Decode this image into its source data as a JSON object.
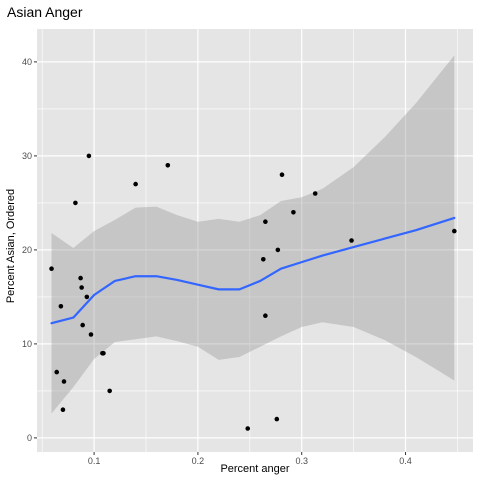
{
  "chart_data": {
    "type": "scatter",
    "title": "Asian Anger",
    "xlabel": "Percent anger",
    "ylabel": "Percent Asian, Ordered",
    "xlim": [
      0.045,
      0.465
    ],
    "ylim": [
      -1.5,
      43.5
    ],
    "x_ticks": [
      0.1,
      0.2,
      0.3,
      0.4
    ],
    "x_tick_labels": [
      "0.1",
      "0.2",
      "0.3",
      "0.4"
    ],
    "y_ticks": [
      0,
      10,
      20,
      30,
      40
    ],
    "y_tick_labels": [
      "0",
      "10",
      "20",
      "30",
      "40"
    ],
    "grid": true,
    "legend": "none",
    "colors": {
      "panel_background": "#e5e5e5",
      "grid_major": "#ffffff",
      "points": "#000000",
      "smooth_line": "#3366ff",
      "ribbon": "#999999"
    },
    "points": [
      {
        "x": 0.059,
        "y": 18
      },
      {
        "x": 0.064,
        "y": 7
      },
      {
        "x": 0.068,
        "y": 14
      },
      {
        "x": 0.07,
        "y": 3
      },
      {
        "x": 0.071,
        "y": 6
      },
      {
        "x": 0.082,
        "y": 25
      },
      {
        "x": 0.087,
        "y": 17
      },
      {
        "x": 0.088,
        "y": 16
      },
      {
        "x": 0.089,
        "y": 12
      },
      {
        "x": 0.093,
        "y": 15
      },
      {
        "x": 0.095,
        "y": 30
      },
      {
        "x": 0.097,
        "y": 11
      },
      {
        "x": 0.108,
        "y": 9
      },
      {
        "x": 0.109,
        "y": 9
      },
      {
        "x": 0.115,
        "y": 5
      },
      {
        "x": 0.14,
        "y": 27
      },
      {
        "x": 0.171,
        "y": 29
      },
      {
        "x": 0.248,
        "y": 1
      },
      {
        "x": 0.263,
        "y": 19
      },
      {
        "x": 0.265,
        "y": 13
      },
      {
        "x": 0.265,
        "y": 23
      },
      {
        "x": 0.276,
        "y": 2
      },
      {
        "x": 0.277,
        "y": 20
      },
      {
        "x": 0.281,
        "y": 28
      },
      {
        "x": 0.292,
        "y": 24
      },
      {
        "x": 0.313,
        "y": 26
      },
      {
        "x": 0.348,
        "y": 21
      },
      {
        "x": 0.447,
        "y": 22
      }
    ],
    "smooth": {
      "method": "loess",
      "x": [
        0.059,
        0.08,
        0.1,
        0.12,
        0.14,
        0.16,
        0.18,
        0.2,
        0.22,
        0.24,
        0.26,
        0.28,
        0.3,
        0.32,
        0.35,
        0.38,
        0.41,
        0.447
      ],
      "y": [
        12.2,
        12.8,
        15.2,
        16.7,
        17.2,
        17.2,
        16.8,
        16.3,
        15.8,
        15.8,
        16.7,
        18.0,
        18.7,
        19.4,
        20.3,
        21.2,
        22.1,
        23.4
      ],
      "ymin": [
        2.6,
        5.4,
        8.4,
        10.2,
        10.5,
        10.8,
        10.3,
        9.7,
        8.3,
        8.6,
        9.7,
        10.8,
        11.8,
        12.3,
        11.8,
        10.4,
        8.6,
        6.1
      ],
      "ymax": [
        21.8,
        20.2,
        22.0,
        23.2,
        24.5,
        24.6,
        23.7,
        23.0,
        23.3,
        23.0,
        23.7,
        25.2,
        25.6,
        26.5,
        28.8,
        32.0,
        35.6,
        40.7
      ]
    }
  }
}
